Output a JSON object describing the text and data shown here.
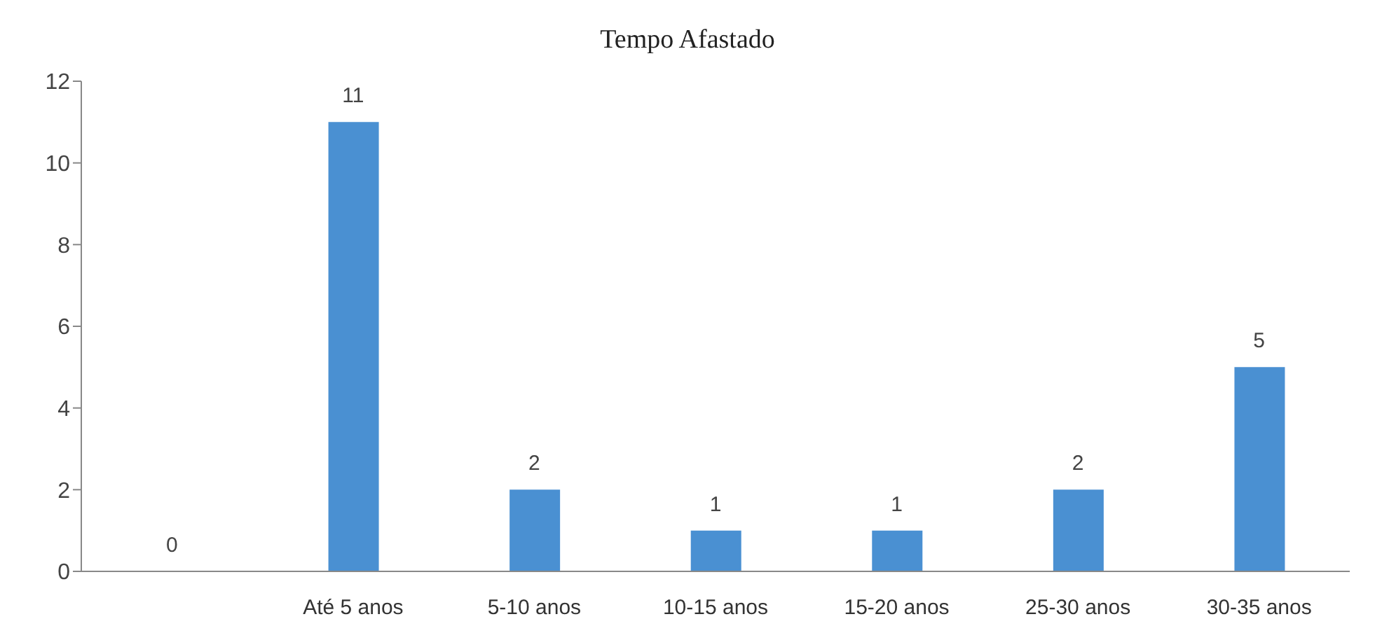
{
  "chart_data": {
    "type": "bar",
    "title": "Tempo Afastado",
    "categories": [
      null,
      "Até 5 anos",
      "5-10 anos",
      "10-15 anos",
      "15-20 anos",
      "25-30 anos",
      "30-35 anos"
    ],
    "values": [
      0,
      11,
      2,
      1,
      1,
      2,
      5
    ],
    "color": "#4a90d2",
    "ylim": [
      0,
      12
    ],
    "yticks": [
      0,
      2,
      4,
      6,
      8,
      10,
      12
    ],
    "data_labels": true,
    "grid": false,
    "legend": false
  }
}
